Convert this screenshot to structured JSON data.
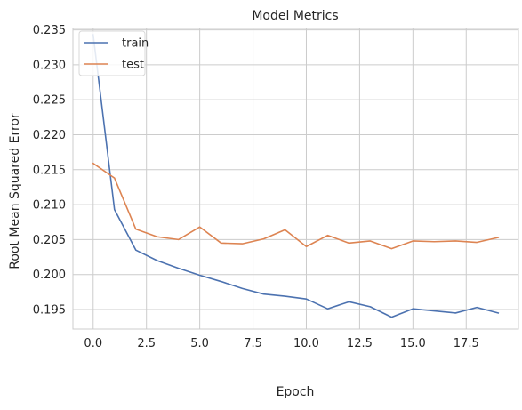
{
  "chart_data": {
    "type": "line",
    "title": "Model Metrics",
    "xlabel": "Epoch",
    "ylabel": "Root Mean Squared Error",
    "xlim": [
      -0.95,
      19.95
    ],
    "ylim": [
      0.1922,
      0.2352
    ],
    "xticks": [
      0.0,
      2.5,
      5.0,
      7.5,
      10.0,
      12.5,
      15.0,
      17.5
    ],
    "xtick_labels": [
      "0.0",
      "2.5",
      "5.0",
      "7.5",
      "10.0",
      "12.5",
      "15.0",
      "17.5"
    ],
    "yticks": [
      0.195,
      0.2,
      0.205,
      0.21,
      0.215,
      0.22,
      0.225,
      0.23,
      0.235
    ],
    "ytick_labels": [
      "0.195",
      "0.200",
      "0.205",
      "0.210",
      "0.215",
      "0.220",
      "0.225",
      "0.230",
      "0.235"
    ],
    "grid": true,
    "legend_position": "upper-left",
    "x": [
      0,
      1,
      2,
      3,
      4,
      5,
      6,
      7,
      8,
      9,
      10,
      11,
      12,
      13,
      14,
      15,
      16,
      17,
      18,
      19
    ],
    "series": [
      {
        "name": "train",
        "color": "#4c72b0",
        "values": [
          0.2343,
          0.2093,
          0.2035,
          0.202,
          0.2009,
          0.1999,
          0.199,
          0.198,
          0.1972,
          0.1969,
          0.1965,
          0.1951,
          0.1961,
          0.1954,
          0.1939,
          0.1951,
          0.1948,
          0.1945,
          0.1953,
          0.1945
        ]
      },
      {
        "name": "test",
        "color": "#dd8452",
        "values": [
          0.2159,
          0.2138,
          0.2065,
          0.2054,
          0.205,
          0.2068,
          0.2045,
          0.2044,
          0.2051,
          0.2064,
          0.204,
          0.2056,
          0.2045,
          0.2048,
          0.2037,
          0.2048,
          0.2047,
          0.2048,
          0.2046,
          0.2053
        ]
      }
    ]
  }
}
